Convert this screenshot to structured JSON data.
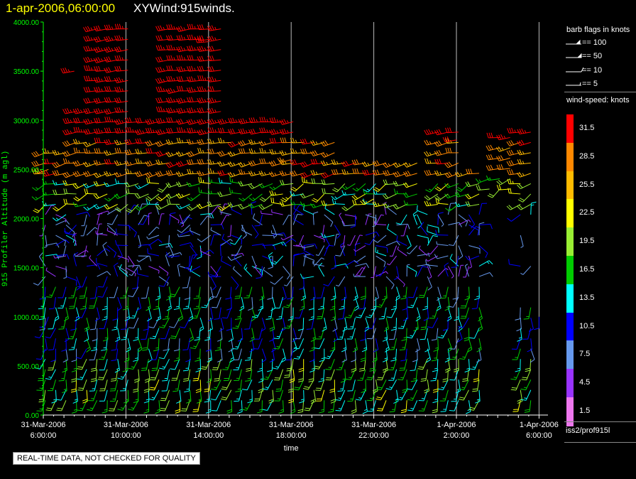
{
  "header": {
    "time_label": "1-apr-2006,06:00:00",
    "title": "XYWind:915winds."
  },
  "qc_notice": "REAL-TIME DATA, NOT CHECKED FOR QUALITY",
  "source_label": "iss2/prof915l",
  "legend": {
    "barb_title": "barb flags in knots",
    "barb_entries": [
      "== 100",
      "== 50",
      "== 10",
      "== 5"
    ],
    "speed_title": "wind-speed: knots",
    "bins": [
      {
        "label": "31.5",
        "color": "#ff0000"
      },
      {
        "label": "28.5",
        "color": "#ff8800"
      },
      {
        "label": "25.5",
        "color": "#ffbb00"
      },
      {
        "label": "22.5",
        "color": "#ffff00"
      },
      {
        "label": "19.5",
        "color": "#99ee33"
      },
      {
        "label": "16.5",
        "color": "#00cc00"
      },
      {
        "label": "13.5",
        "color": "#00ffff"
      },
      {
        "label": "10.5",
        "color": "#0000ff"
      },
      {
        "label": "7.5",
        "color": "#6699ee"
      },
      {
        "label": "4.5",
        "color": "#9933ff"
      },
      {
        "label": "1.5",
        "color": "#ee77ee"
      }
    ]
  },
  "chart_data": {
    "type": "wind-barb time-height",
    "ylabel": "915 Profiler Altitude (m agl)",
    "xlabel": "time",
    "ylim": [
      0,
      4000
    ],
    "xlim_hours": [
      0,
      24.5
    ],
    "grid": true,
    "yticks": [
      "0.00",
      "500.00",
      "1000.00",
      "1500.00",
      "2000.00",
      "2500.00",
      "3000.00",
      "3500.00",
      "4000.00"
    ],
    "xticks": [
      {
        "date": "31-Mar-2006",
        "time": "6:00:00",
        "hour": 0
      },
      {
        "date": "31-Mar-2006",
        "time": "10:00:00",
        "hour": 4
      },
      {
        "date": "31-Mar-2006",
        "time": "14:00:00",
        "hour": 8
      },
      {
        "date": "31-Mar-2006",
        "time": "18:00:00",
        "hour": 12
      },
      {
        "date": "31-Mar-2006",
        "time": "22:00:00",
        "hour": 16
      },
      {
        "date": "1-Apr-2006",
        "time": "2:00:00",
        "hour": 20
      },
      {
        "date": "1-Apr-2006",
        "time": "6:00:00",
        "hour": 24
      }
    ],
    "observations": [
      {
        "hour": 0.25,
        "alt": 1000,
        "speed": 9,
        "dir": 200
      },
      {
        "hour": 0.25,
        "alt": 2500,
        "speed": 27,
        "dir": 250
      },
      {
        "hour": 1.5,
        "alt": 3500,
        "speed": 33,
        "dir": 260
      },
      {
        "hour": 4.0,
        "alt": 1500,
        "speed": 5,
        "dir": 120
      },
      {
        "hour": 8.0,
        "alt": 3800,
        "speed": 33,
        "dir": 265
      },
      {
        "hour": 12.0,
        "alt": 2600,
        "speed": 27,
        "dir": 255
      },
      {
        "hour": 12.0,
        "alt": 500,
        "speed": 19,
        "dir": 190
      },
      {
        "hour": 16.0,
        "alt": 2200,
        "speed": 21,
        "dir": 240
      },
      {
        "hour": 20.0,
        "alt": 2800,
        "speed": 31,
        "dir": 260
      },
      {
        "hour": 24.0,
        "alt": 1000,
        "speed": 11,
        "dir": 180
      }
    ]
  }
}
